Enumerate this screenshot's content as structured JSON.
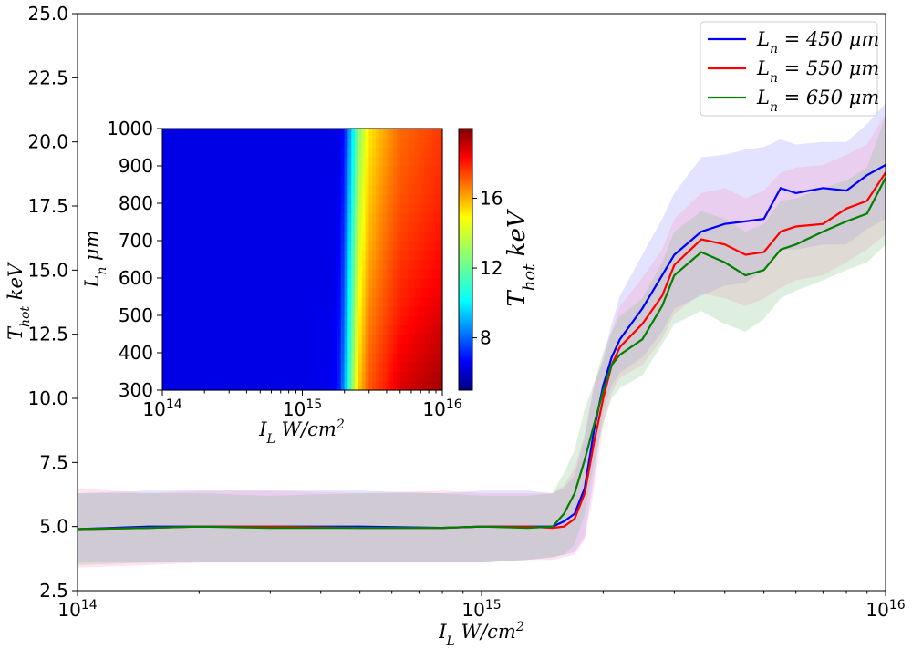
{
  "chart_data": [
    {
      "type": "line",
      "xlabel": "I_L W/cm²",
      "ylabel": "T_hot keV",
      "xscale": "log",
      "xlim": [
        100000000000000.0,
        1e+16
      ],
      "ylim": [
        2.5,
        25.0
      ],
      "grid": false,
      "legend_position": "top-right",
      "x_ticks": [
        {
          "value": 100000000000000.0,
          "mantissa": "10",
          "exponent": "14"
        },
        {
          "value": 1000000000000000.0,
          "mantissa": "10",
          "exponent": "15"
        },
        {
          "value": 1e+16,
          "mantissa": "10",
          "exponent": "16"
        }
      ],
      "y_ticks": [
        "2.5",
        "5.0",
        "7.5",
        "10.0",
        "12.5",
        "15.0",
        "17.5",
        "20.0",
        "22.5",
        "25.0"
      ],
      "x": [
        100000000000000.0,
        150000000000000.0,
        200000000000000.0,
        300000000000000.0,
        500000000000000.0,
        800000000000000.0,
        1000000000000000.0,
        1300000000000000.0,
        1500000000000000.0,
        1600000000000000.0,
        1700000000000000.0,
        1800000000000000.0,
        1900000000000000.0,
        2000000000000000.0,
        2100000000000000.0,
        2200000000000000.0,
        2500000000000000.0,
        2800000000000000.0,
        3000000000000000.0,
        3500000000000000.0,
        4000000000000000.0,
        4500000000000000.0,
        5000000000000000.0,
        5500000000000000.0,
        6000000000000000.0,
        7000000000000000.0,
        8000000000000000.0,
        9000000000000000.0,
        1e+16
      ],
      "series": [
        {
          "name": "L_n = 450 μm",
          "label_main": "L",
          "label_sub": "n",
          "label_rest": " = 450 μm",
          "color": "#0000ff",
          "y": [
            4.9,
            5.0,
            5.0,
            5.0,
            5.0,
            4.95,
            5.0,
            5.0,
            5.0,
            5.2,
            5.5,
            6.5,
            8.8,
            10.5,
            11.6,
            12.3,
            13.5,
            14.8,
            15.6,
            16.5,
            16.8,
            16.9,
            17.0,
            18.2,
            18.0,
            18.2,
            18.1,
            18.7,
            19.1
          ],
          "lower": [
            3.6,
            3.6,
            3.6,
            3.6,
            3.6,
            3.6,
            3.6,
            3.7,
            3.8,
            3.9,
            4.0,
            4.6,
            7.0,
            9.5,
            10.5,
            11.0,
            11.6,
            12.6,
            13.5,
            14.0,
            14.4,
            14.5,
            15.0,
            15.8,
            15.8,
            16.0,
            16.0,
            16.6,
            17.0
          ],
          "upper": [
            6.3,
            6.4,
            6.4,
            6.4,
            6.4,
            6.3,
            6.4,
            6.4,
            6.3,
            6.5,
            7.0,
            8.5,
            10.5,
            11.6,
            12.9,
            14.0,
            15.6,
            17.0,
            18.0,
            19.4,
            19.5,
            19.7,
            19.8,
            20.1,
            19.9,
            20.0,
            20.0,
            20.7,
            21.5
          ]
        },
        {
          "name": "L_n = 550 μm",
          "label_main": "L",
          "label_sub": "n",
          "label_rest": " = 550 μm",
          "color": "#ff0000",
          "y": [
            4.9,
            4.95,
            5.0,
            5.0,
            4.95,
            4.95,
            5.0,
            5.0,
            4.95,
            5.0,
            5.3,
            6.3,
            8.3,
            10.0,
            11.3,
            12.0,
            12.9,
            14.0,
            15.2,
            16.2,
            16.0,
            15.6,
            15.7,
            16.5,
            16.7,
            16.8,
            17.4,
            17.7,
            18.8
          ],
          "lower": [
            3.4,
            3.5,
            3.6,
            3.6,
            3.6,
            3.6,
            3.6,
            3.7,
            3.7,
            3.8,
            3.9,
            4.5,
            6.5,
            9.0,
            10.2,
            10.8,
            11.3,
            12.3,
            13.3,
            14.1,
            13.9,
            13.6,
            13.9,
            14.3,
            14.6,
            14.8,
            15.3,
            15.8,
            16.4
          ],
          "upper": [
            6.5,
            6.3,
            6.4,
            6.4,
            6.3,
            6.4,
            6.3,
            6.3,
            6.3,
            6.6,
            7.3,
            8.6,
            10.6,
            11.4,
            12.6,
            13.6,
            14.7,
            15.8,
            17.0,
            18.0,
            18.2,
            17.8,
            18.1,
            18.8,
            19.0,
            19.1,
            19.5,
            19.9,
            21.1
          ]
        },
        {
          "name": "L_n = 650 μm",
          "label_main": "L",
          "label_sub": "n",
          "label_rest": " = 650 μm",
          "color": "#008000",
          "y": [
            4.9,
            4.95,
            5.0,
            4.95,
            4.95,
            4.95,
            5.0,
            4.95,
            5.0,
            5.5,
            6.3,
            7.6,
            9.0,
            10.3,
            11.3,
            11.7,
            12.3,
            13.6,
            14.8,
            15.7,
            15.3,
            14.8,
            15.0,
            15.8,
            16.0,
            16.5,
            16.9,
            17.2,
            18.6
          ],
          "lower": [
            3.5,
            3.6,
            3.6,
            3.6,
            3.6,
            3.6,
            3.6,
            3.7,
            3.8,
            3.9,
            4.3,
            5.5,
            7.5,
            9.0,
            10.0,
            10.4,
            10.9,
            12.1,
            12.9,
            13.4,
            12.9,
            12.6,
            13.1,
            13.9,
            14.2,
            14.6,
            15.0,
            15.3,
            16.0
          ],
          "upper": [
            6.3,
            6.3,
            6.3,
            6.2,
            6.3,
            6.3,
            6.2,
            6.2,
            6.3,
            7.1,
            8.0,
            9.6,
            10.6,
            11.8,
            12.6,
            13.2,
            13.9,
            15.3,
            16.5,
            17.3,
            17.0,
            16.5,
            16.8,
            17.7,
            17.8,
            18.2,
            18.5,
            19.0,
            21.0
          ]
        }
      ]
    },
    {
      "type": "heatmap",
      "xlabel": "I_L W/cm²",
      "ylabel": "L_n μm",
      "colorbar_label": "T_hot keV",
      "xscale": "log",
      "xlim": [
        100000000000000.0,
        1e+16
      ],
      "ylim": [
        300,
        1000
      ],
      "colormap": "jet",
      "clim": [
        5,
        20
      ],
      "x_ticks": [
        {
          "value": 100000000000000.0,
          "mantissa": "10",
          "exponent": "14"
        },
        {
          "value": 1000000000000000.0,
          "mantissa": "10",
          "exponent": "15"
        },
        {
          "value": 1e+16,
          "mantissa": "10",
          "exponent": "16"
        }
      ],
      "y_ticks": [
        "300",
        "400",
        "500",
        "600",
        "700",
        "800",
        "900",
        "1000"
      ],
      "colorbar_ticks": [
        "8",
        "12",
        "16"
      ],
      "Ln": [
        300,
        400,
        500,
        600,
        700,
        800,
        900,
        1000
      ],
      "IL": [
        100000000000000.0,
        1000000000000000.0,
        1600000000000000.0,
        1800000000000000.0,
        2000000000000000.0,
        2200000000000000.0,
        2500000000000000.0,
        3000000000000000.0,
        4000000000000000.0,
        5000000000000000.0,
        7000000000000000.0,
        1e+16
      ],
      "T_hot": [
        [
          5.0,
          5.0,
          5.2,
          5.5,
          8.0,
          11.0,
          14.5,
          16.5,
          17.5,
          18.5,
          19.0,
          19.5
        ],
        [
          5.0,
          5.0,
          5.1,
          5.4,
          7.6,
          10.6,
          14.0,
          16.2,
          17.2,
          18.0,
          18.5,
          19.0
        ],
        [
          5.0,
          5.0,
          5.1,
          5.3,
          7.2,
          10.2,
          13.6,
          15.8,
          16.8,
          17.5,
          18.0,
          18.5
        ],
        [
          5.0,
          5.0,
          5.0,
          5.2,
          6.8,
          9.8,
          13.2,
          15.4,
          16.5,
          17.2,
          17.6,
          18.0
        ],
        [
          5.0,
          5.0,
          5.0,
          5.1,
          6.4,
          9.4,
          12.8,
          15.0,
          16.2,
          16.9,
          17.3,
          17.7
        ],
        [
          5.0,
          5.0,
          5.0,
          5.1,
          6.0,
          9.0,
          12.4,
          14.7,
          15.9,
          16.6,
          17.0,
          17.4
        ],
        [
          5.0,
          5.0,
          5.0,
          5.0,
          5.8,
          8.6,
          12.0,
          14.4,
          15.6,
          16.4,
          16.8,
          17.2
        ],
        [
          5.0,
          5.0,
          5.0,
          5.0,
          5.6,
          8.2,
          11.6,
          14.1,
          15.3,
          16.2,
          16.6,
          17.0
        ]
      ]
    }
  ]
}
